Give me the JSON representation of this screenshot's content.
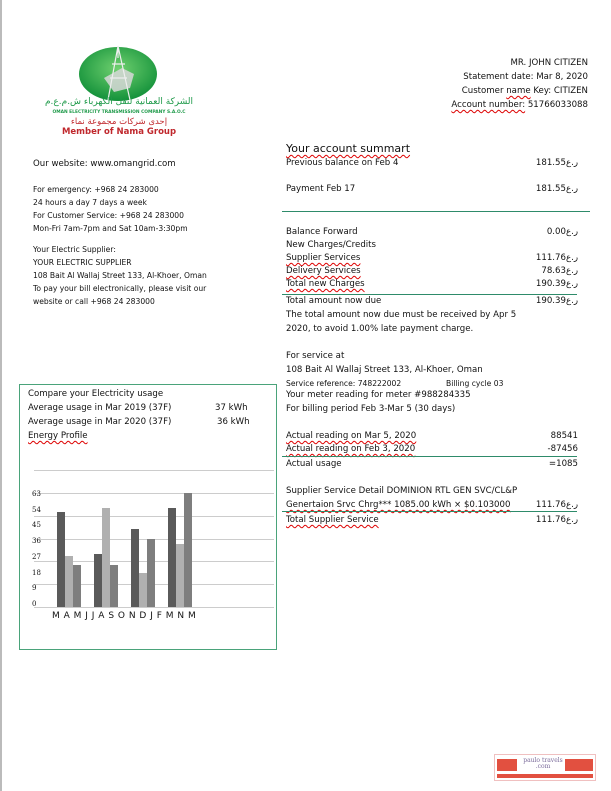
{
  "logo": {
    "arabic_name": "الشركة العمانية لنقل الكهرباء ش.م.ع.م",
    "english_name": "OMAN ELECTRICITY TRANSMISSION COMPANY S.A.O.C",
    "arabic_member": "إحدى شركات مجموعة نماء",
    "member": "Member of Nama Group"
  },
  "customer": {
    "name": "MR. JOHN CITIZEN",
    "statement_date": "Statement date: Mar 8, 2020",
    "key_label": "Customer",
    "key_sq": "name",
    "key_rest": " Key: CITIZEN",
    "account_sq": "Account number:",
    "account_value": " 51766033088"
  },
  "contact": {
    "website": "Our website: www.omangrid.com",
    "emergency": "For emergency: +968 24 283000",
    "hours": "24 hours a day 7 days a week",
    "service": "For Customer Service: +968 24 283000",
    "service_hours": "Mon-Fri 7am-7pm and Sat 10am-3:30pm",
    "supplier_label": "Your Electric Supplier:",
    "supplier_name": "YOUR ELECTRIC SUPPLIER",
    "address": "108 Bait Al Wallaj Street 133, Al-Khoer, Oman",
    "pay1": "To pay your bill electronically, please visit our",
    "pay2": "website or call +968 24 283000"
  },
  "summary": {
    "title": "Your account summart",
    "currency": "ر.ع",
    "rows": [
      {
        "label": "Previous balance on Feb 4",
        "value": "181.55"
      },
      {
        "label": "Payment Feb 17",
        "value": "181.55"
      },
      {
        "label": "Balance Forward",
        "value": "0.00"
      },
      {
        "label": "New Charges/Credits",
        "value": ""
      },
      {
        "label": "Supplier Services",
        "value": "111.76"
      },
      {
        "label": "Delivery Services",
        "value": "78.63"
      },
      {
        "label": "Total new Charges",
        "value": "190.39"
      },
      {
        "label": "Total amount now due",
        "value": "190.39"
      }
    ],
    "due_note1": "The total amount now due must be received by Apr 5",
    "due_note2": "2020, to avoid 1.00% late payment charge."
  },
  "service": {
    "heading": "For service at",
    "address": "108 Bait Al Wallaj Street 133, Al-Khoer, Oman",
    "reference": "Service reference: 748222002",
    "cycle": "Billing cycle 03",
    "meter": "Your meter reading for meter #988284335",
    "period": "For billing period Feb 3-Mar 5 (30 days)",
    "readings": [
      {
        "label": "Actual reading on Mar 5, 2020",
        "value": "88541"
      },
      {
        "label": "Actual reading on Feb 3, 2020",
        "value": "-87456"
      },
      {
        "label": "Actual usage",
        "value": "=1085"
      }
    ],
    "detail": "Supplier Service Detail DOMINION RTL GEN SVC/CL&P",
    "gen_label": "Genertaion Srvc Chrg*** 1085.00 kWh × $0.103000",
    "gen_value": "111.76",
    "total_label": "Total Supplier Service",
    "total_value": "111.76"
  },
  "usage": {
    "title": "Compare your Electricity usage",
    "avg2019_label": "Average usage in Mar 2019 (37F)",
    "avg2019_value": "37 kWh",
    "avg2020_label": "Average usage in Mar 2020 (37F)",
    "avg2020_value": "36 kWh",
    "profile": "Energy Profile"
  },
  "chart_data": {
    "type": "bar",
    "title": "Energy Profile",
    "x_tick_labels": "M A M J J A S O N D J F M N M",
    "y_ticks": [
      0,
      9,
      18,
      27,
      36,
      45,
      54,
      63
    ],
    "groups": [
      [
        50,
        27,
        22
      ],
      [
        28,
        52,
        22
      ],
      [
        41,
        18,
        36
      ],
      [
        52,
        33,
        60
      ]
    ],
    "series_colors": [
      "#5a5a5a",
      "#b0b0b0",
      "#7e7e7e"
    ],
    "grid": true
  },
  "watermark": "paulo travels .com",
  "colors": {
    "accent": "#2e8b6a",
    "brand_red": "#c0282d",
    "brand_green": "#1f9a4a"
  }
}
